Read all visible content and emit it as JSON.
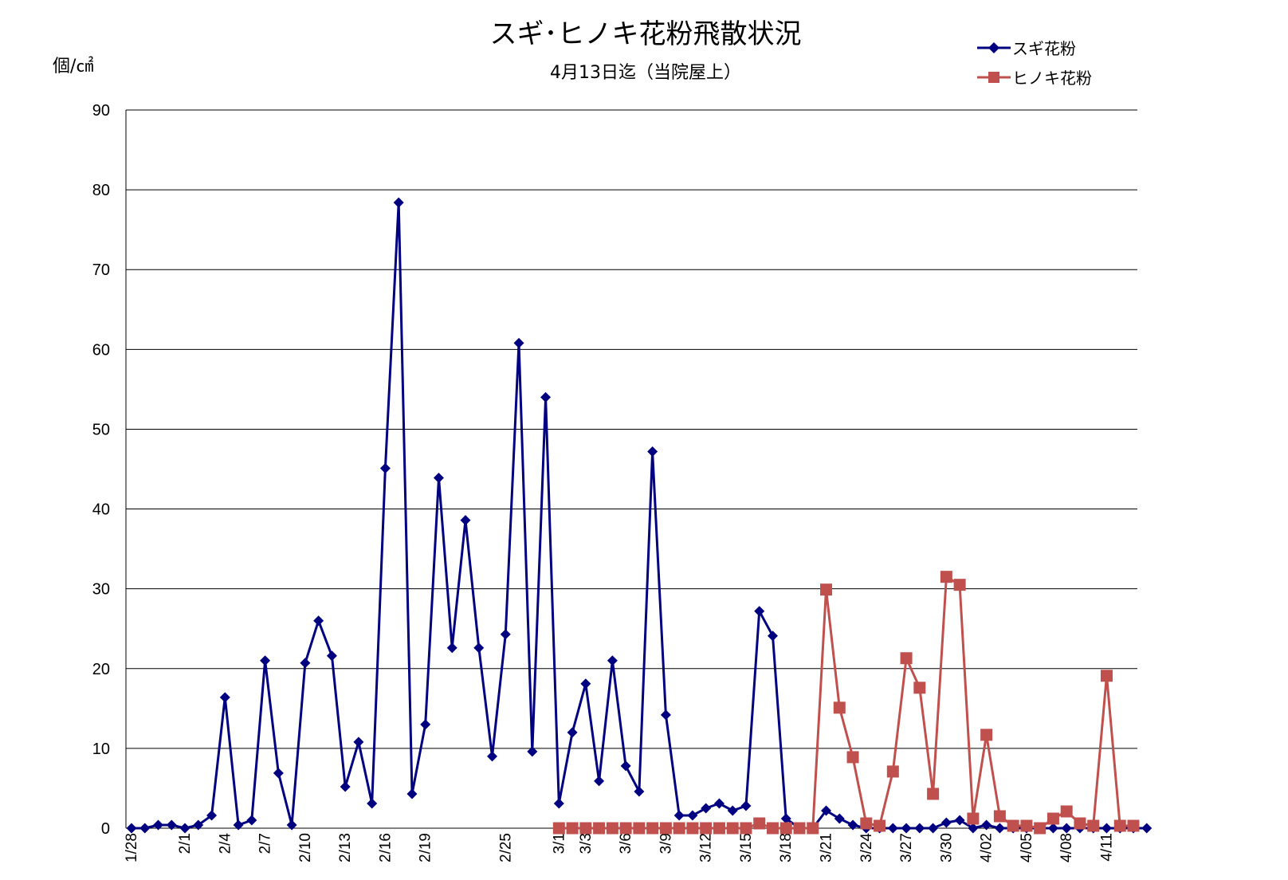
{
  "chart_data": {
    "type": "line",
    "title": "スギ･ヒノキ花粉飛散状況",
    "subtitle": "4月13日迄（当院屋上）",
    "ylabel": "個/㎠",
    "ylim": [
      0,
      90
    ],
    "yticks": [
      0,
      10,
      20,
      30,
      40,
      50,
      60,
      70,
      80,
      90
    ],
    "grid": true,
    "legend_position": "top-right",
    "x_count": 77,
    "x_tick_labels": [
      {
        "index": 0,
        "label": "1/28"
      },
      {
        "index": 4,
        "label": "2/1"
      },
      {
        "index": 7,
        "label": "2/4"
      },
      {
        "index": 10,
        "label": "2/7"
      },
      {
        "index": 13,
        "label": "2/10"
      },
      {
        "index": 16,
        "label": "2/13"
      },
      {
        "index": 19,
        "label": "2/16"
      },
      {
        "index": 22,
        "label": "2/19"
      },
      {
        "index": 28,
        "label": "2/25"
      },
      {
        "index": 32,
        "label": "3/1"
      },
      {
        "index": 34,
        "label": "3/3"
      },
      {
        "index": 37,
        "label": "3/6"
      },
      {
        "index": 40,
        "label": "3/9"
      },
      {
        "index": 43,
        "label": "3/12"
      },
      {
        "index": 46,
        "label": "3/15"
      },
      {
        "index": 49,
        "label": "3/18"
      },
      {
        "index": 52,
        "label": "3/21"
      },
      {
        "index": 55,
        "label": "3/24"
      },
      {
        "index": 58,
        "label": "3/27"
      },
      {
        "index": 61,
        "label": "3/30"
      },
      {
        "index": 64,
        "label": "4/02"
      },
      {
        "index": 67,
        "label": "4/05"
      },
      {
        "index": 70,
        "label": "4/08"
      },
      {
        "index": 73,
        "label": "4/11"
      }
    ],
    "series": [
      {
        "name": "スギ花粉",
        "color": "#000080",
        "marker": "diamond",
        "start_index": 0,
        "values": [
          0,
          0,
          0.4,
          0.4,
          0,
          0.4,
          1.6,
          16.4,
          0.4,
          1,
          21,
          6.9,
          0.4,
          20.7,
          26,
          21.6,
          5.2,
          10.8,
          3.1,
          45.1,
          78.4,
          4.3,
          13,
          43.9,
          22.6,
          38.6,
          22.6,
          9,
          24.3,
          60.8,
          9.6,
          54,
          3.1,
          12,
          18.1,
          5.9,
          21,
          7.8,
          4.6,
          47.2,
          14.2,
          1.6,
          1.6,
          2.5,
          3.1,
          2.2,
          2.8,
          27.2,
          24.1,
          1.2,
          0,
          0,
          2.2,
          1.2,
          0.4,
          0,
          0,
          0,
          0,
          0,
          0,
          0.7,
          1,
          0,
          0.4,
          0,
          0,
          0,
          0,
          0,
          0,
          0,
          0,
          0,
          0,
          0,
          0
        ]
      },
      {
        "name": "ヒノキ花粉",
        "color": "#C0504D",
        "marker": "square",
        "start_index": 32,
        "values": [
          0,
          0,
          0,
          0,
          0,
          0,
          0,
          0,
          0,
          0,
          0,
          0,
          0,
          0,
          0,
          0.6,
          0,
          0,
          0,
          0,
          29.9,
          15.1,
          8.9,
          0.6,
          0.3,
          7.1,
          21.3,
          17.6,
          4.3,
          31.5,
          30.5,
          1.2,
          11.7,
          1.5,
          0.3,
          0.3,
          0,
          1.2,
          2.1,
          0.6,
          0.3,
          19.1,
          0.3,
          0.3
        ]
      }
    ]
  }
}
